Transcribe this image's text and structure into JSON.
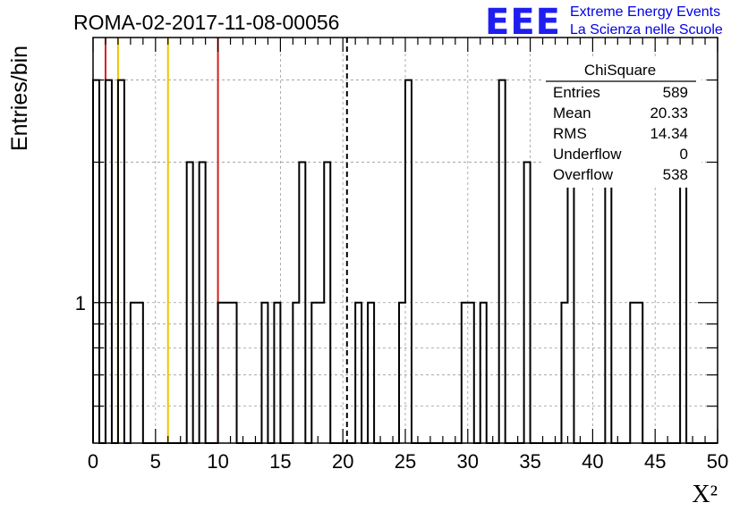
{
  "header": {
    "run_title": "ROMA-02-2017-11-08-00056",
    "brand_logo": "EEE",
    "brand_line1": "Extreme Energy Events",
    "brand_line2": "La Scienza nelle Scuole"
  },
  "stats_box": {
    "title": "ChiSquare",
    "rows": [
      {
        "label": "Entries",
        "value": "589"
      },
      {
        "label": "Mean",
        "value": "20.33"
      },
      {
        "label": "RMS",
        "value": "14.34"
      },
      {
        "label": "Underflow",
        "value": "0"
      },
      {
        "label": "Overflow",
        "value": "538"
      }
    ]
  },
  "colors": {
    "histogram": "#000000",
    "red_line": "#d62020",
    "yellow_line": "#f2c400",
    "mean_line": "#000000",
    "grid": "#9a9a9a",
    "brand": "#1e1ef0"
  },
  "chart_data": {
    "type": "histogram",
    "title": "ROMA-02-2017-11-08-00056",
    "xlabel": "X²",
    "ylabel": "Entries/bin",
    "xlim": [
      0,
      50
    ],
    "ylim": [
      0.5,
      3.7
    ],
    "yscale": "log",
    "bin_width": 0.5,
    "grid": true,
    "legend": "stats box top-right",
    "x_ticks": [
      "0",
      "5",
      "10",
      "15",
      "20",
      "25",
      "30",
      "35",
      "40",
      "45",
      "50"
    ],
    "y_ticks": [
      "1"
    ],
    "bins": [
      {
        "x": 0.0,
        "count": 3
      },
      {
        "x": 1.0,
        "count": 3
      },
      {
        "x": 2.0,
        "count": 3
      },
      {
        "x": 3.0,
        "count": 1
      },
      {
        "x": 3.5,
        "count": 1
      },
      {
        "x": 7.5,
        "count": 2
      },
      {
        "x": 8.5,
        "count": 2
      },
      {
        "x": 10.0,
        "count": 1
      },
      {
        "x": 10.5,
        "count": 1
      },
      {
        "x": 11.0,
        "count": 1
      },
      {
        "x": 13.5,
        "count": 1
      },
      {
        "x": 14.5,
        "count": 1
      },
      {
        "x": 16.0,
        "count": 1
      },
      {
        "x": 16.5,
        "count": 2
      },
      {
        "x": 17.5,
        "count": 1
      },
      {
        "x": 18.0,
        "count": 1
      },
      {
        "x": 18.5,
        "count": 2
      },
      {
        "x": 21.0,
        "count": 1
      },
      {
        "x": 22.0,
        "count": 1
      },
      {
        "x": 24.5,
        "count": 1
      },
      {
        "x": 25.0,
        "count": 3
      },
      {
        "x": 29.5,
        "count": 1
      },
      {
        "x": 30.0,
        "count": 1
      },
      {
        "x": 31.0,
        "count": 1
      },
      {
        "x": 32.5,
        "count": 3
      },
      {
        "x": 34.5,
        "count": 2
      },
      {
        "x": 37.5,
        "count": 1
      },
      {
        "x": 38.0,
        "count": 2
      },
      {
        "x": 41.0,
        "count": 2
      },
      {
        "x": 43.0,
        "count": 1
      },
      {
        "x": 43.5,
        "count": 1
      },
      {
        "x": 47.0,
        "count": 2
      }
    ],
    "vertical_lines": [
      {
        "x": 1.0,
        "color": "red"
      },
      {
        "x": 2.0,
        "color": "yellow"
      },
      {
        "x": 6.0,
        "color": "yellow"
      },
      {
        "x": 10.0,
        "color": "red"
      },
      {
        "x": 20.33,
        "color": "black",
        "style": "dashed"
      }
    ]
  }
}
